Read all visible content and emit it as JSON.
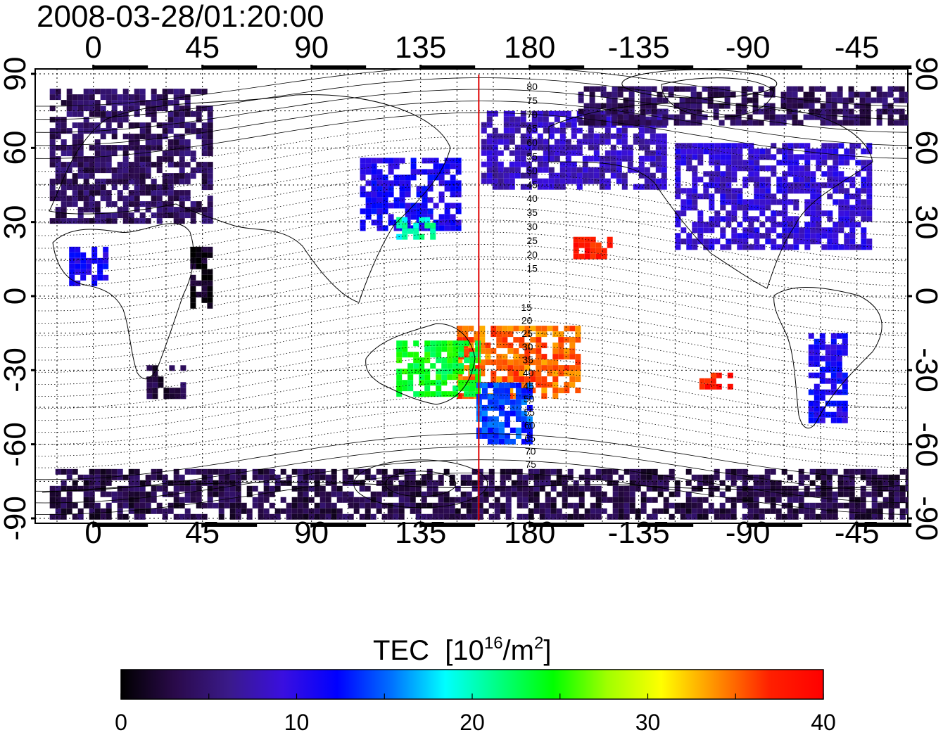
{
  "title": "2008-03-28/01:20:00",
  "map": {
    "lon_ticks": [
      "0",
      "45",
      "90",
      "135",
      "180",
      "-135",
      "-90",
      "-45"
    ],
    "lat_ticks": [
      "90",
      "60",
      "30",
      "0",
      "-30",
      "-60",
      "-90"
    ],
    "lon_tick_values": [
      0,
      45,
      90,
      135,
      180,
      225,
      270,
      315
    ],
    "lat_tick_values": [
      90,
      60,
      30,
      0,
      -30,
      -60,
      -90
    ],
    "lon_range": [
      -24,
      336
    ],
    "lat_range": [
      -92,
      92
    ],
    "grid": "dotted every 15 degrees",
    "terminator_longitude": 159,
    "terminator_color": "#e00000",
    "contour_labels_upper": [
      "80",
      "75",
      "70",
      "65",
      "60",
      "55",
      "50",
      "45",
      "40",
      "35",
      "30",
      "25",
      "20",
      "15"
    ],
    "contour_labels_lower": [
      "15",
      "20",
      "25",
      "30",
      "35",
      "40",
      "45",
      "50",
      "55",
      "60",
      "65",
      "70",
      "75"
    ]
  },
  "colorbar": {
    "label": "TEC",
    "unit_prefix": "[10",
    "unit_exp": "16",
    "unit_suffix": "/m",
    "unit_sq": "2",
    "unit_close": "]",
    "ticks": [
      "0",
      "10",
      "20",
      "30",
      "40"
    ],
    "range": [
      0,
      40
    ],
    "colors": [
      "#000000",
      "#2a0a4a",
      "#3a1a8a",
      "#3a0fe0",
      "#0000ff",
      "#0070ff",
      "#00ffff",
      "#00ff80",
      "#00ff00",
      "#a0ff00",
      "#ffff00",
      "#ff9000",
      "#ff2000",
      "#ff0000"
    ]
  },
  "chart_data": {
    "type": "heatmap",
    "title": "2008-03-28/01:20:00",
    "xlabel": "",
    "ylabel": "",
    "colorbar_label": "TEC [10^16/m^2]",
    "zlim": [
      0,
      40
    ],
    "regions": [
      {
        "lon": [
          -18,
          48
        ],
        "lat": [
          30,
          84
        ],
        "tec": 4
      },
      {
        "lon": [
          -10,
          5
        ],
        "lat": [
          5,
          20
        ],
        "tec": 11
      },
      {
        "lon": [
          40,
          48
        ],
        "lat": [
          -5,
          20
        ],
        "tec": 1
      },
      {
        "lon": [
          22,
          38
        ],
        "lat": [
          -40,
          -28
        ],
        "tec": 3
      },
      {
        "lon": [
          110,
          150
        ],
        "lat": [
          28,
          56
        ],
        "tec": 11
      },
      {
        "lon": [
          125,
          140
        ],
        "lat": [
          25,
          32
        ],
        "tec": 20
      },
      {
        "lon": [
          160,
          235
        ],
        "lat": [
          45,
          75
        ],
        "tec": 8
      },
      {
        "lon": [
          240,
          320
        ],
        "lat": [
          20,
          62
        ],
        "tec": 9
      },
      {
        "lon": [
          295,
          310
        ],
        "lat": [
          -50,
          -15
        ],
        "tec": 11
      },
      {
        "lon": [
          198,
          212
        ],
        "lat": [
          15,
          24
        ],
        "tec": 38
      },
      {
        "lon": [
          150,
          200
        ],
        "lat": [
          -40,
          -12
        ],
        "tec": 35
      },
      {
        "lon": [
          125,
          158
        ],
        "lat": [
          -40,
          -18
        ],
        "tec": 24
      },
      {
        "lon": [
          158,
          180
        ],
        "lat": [
          -58,
          -35
        ],
        "tec": 14
      },
      {
        "lon": [
          250,
          262
        ],
        "lat": [
          -36,
          -31
        ],
        "tec": 38
      },
      {
        "lon": [
          -18,
          336
        ],
        "lat": [
          -90,
          -70
        ],
        "tec": 3
      },
      {
        "lon": [
          200,
          336
        ],
        "lat": [
          70,
          85
        ],
        "tec": 4
      }
    ]
  }
}
